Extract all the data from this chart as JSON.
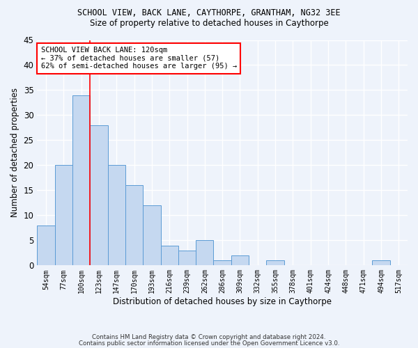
{
  "title1": "SCHOOL VIEW, BACK LANE, CAYTHORPE, GRANTHAM, NG32 3EE",
  "title2": "Size of property relative to detached houses in Caythorpe",
  "xlabel": "Distribution of detached houses by size in Caythorpe",
  "ylabel": "Number of detached properties",
  "categories": [
    "54sqm",
    "77sqm",
    "100sqm",
    "123sqm",
    "147sqm",
    "170sqm",
    "193sqm",
    "216sqm",
    "239sqm",
    "262sqm",
    "286sqm",
    "309sqm",
    "332sqm",
    "355sqm",
    "378sqm",
    "401sqm",
    "424sqm",
    "448sqm",
    "471sqm",
    "494sqm",
    "517sqm"
  ],
  "values": [
    8,
    20,
    34,
    28,
    20,
    16,
    12,
    4,
    3,
    5,
    1,
    2,
    0,
    1,
    0,
    0,
    0,
    0,
    0,
    1,
    0
  ],
  "bar_color": "#c5d8f0",
  "bar_edge_color": "#5b9bd5",
  "background_color": "#eef3fb",
  "grid_color": "#ffffff",
  "vline_x": 2.5,
  "vline_color": "red",
  "annotation_line1": "SCHOOL VIEW BACK LANE: 120sqm",
  "annotation_line2": "← 37% of detached houses are smaller (57)",
  "annotation_line3": "62% of semi-detached houses are larger (95) →",
  "annotation_box_color": "white",
  "annotation_box_edge": "red",
  "ylim": [
    0,
    45
  ],
  "yticks": [
    0,
    5,
    10,
    15,
    20,
    25,
    30,
    35,
    40,
    45
  ],
  "footnote1": "Contains HM Land Registry data © Crown copyright and database right 2024.",
  "footnote2": "Contains public sector information licensed under the Open Government Licence v3.0."
}
